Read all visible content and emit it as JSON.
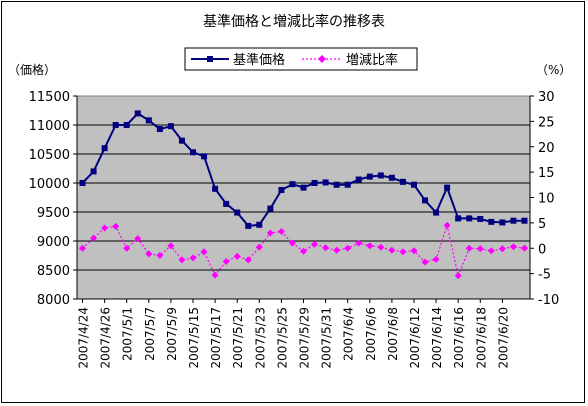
{
  "chart_data": {
    "type": "line",
    "title": "基準価格と増減比率の推移表",
    "y_left_label": "（価格）",
    "y_right_label": "（%）",
    "y_left_lim": [
      8000,
      11500
    ],
    "y_left_ticks": [
      "8000",
      "8500",
      "9000",
      "9500",
      "10000",
      "10500",
      "11000",
      "11500"
    ],
    "y_right_lim": [
      -10,
      30
    ],
    "y_right_ticks": [
      "-10",
      "-5",
      "0",
      "5",
      "10",
      "15",
      "20",
      "25",
      "30"
    ],
    "x_tick_labels": [
      "2007/4/24",
      "2007/4/26",
      "2007/5/1",
      "2007/5/7",
      "2007/5/9",
      "2007/5/15",
      "2007/5/17",
      "2007/5/21",
      "2007/5/23",
      "2007/5/25",
      "2007/5/29",
      "2007/5/31",
      "2007/6/4",
      "2007/6/6",
      "2007/6/8",
      "2007/6/12",
      "2007/6/14",
      "2007/6/16",
      "2007/6/18",
      "2007/6/20"
    ],
    "legend_placement": "top-center",
    "grid": "horizontal",
    "plot_background": "#c0c0c0",
    "series": [
      {
        "name": "基準価格",
        "axis": "left",
        "color": "#000080",
        "marker": "square",
        "values": [
          10000,
          10200,
          10600,
          11000,
          11000,
          11200,
          11080,
          10930,
          10980,
          10730,
          10530,
          10460,
          9900,
          9640,
          9490,
          9260,
          9280,
          9560,
          9880,
          9980,
          9920,
          10000,
          10010,
          9970,
          9970,
          10060,
          10110,
          10130,
          10090,
          10020,
          9970,
          9700,
          9490,
          9920,
          9390,
          9390,
          9380,
          9330,
          9320,
          9350,
          9350
        ]
      },
      {
        "name": "増減比率",
        "axis": "right",
        "color": "#ff00ff",
        "marker": "diamond",
        "values": [
          0.0,
          2.0,
          4.0,
          4.3,
          0.0,
          1.9,
          -1.1,
          -1.4,
          0.5,
          -2.3,
          -1.9,
          -0.7,
          -5.3,
          -2.6,
          -1.6,
          -2.3,
          0.2,
          3.0,
          3.3,
          1.0,
          -0.6,
          0.8,
          0.1,
          -0.4,
          0.0,
          1.0,
          0.5,
          0.2,
          -0.4,
          -0.7,
          -0.5,
          -2.7,
          -2.2,
          4.5,
          -5.4,
          0.0,
          -0.1,
          -0.5,
          -0.1,
          0.3,
          0.0
        ]
      }
    ]
  }
}
